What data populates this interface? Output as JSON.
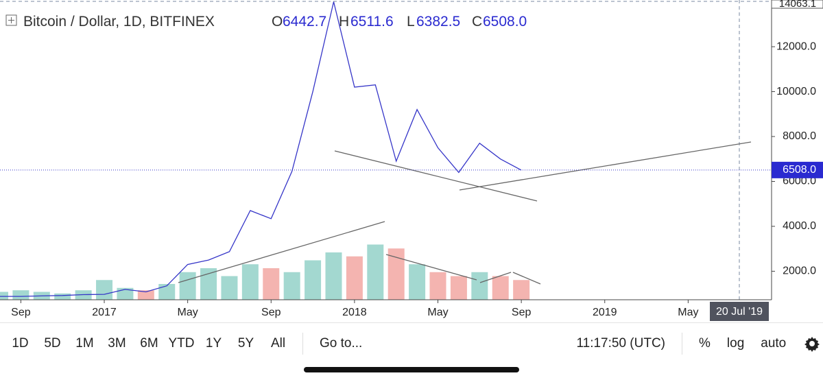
{
  "chart_data": {
    "type": "line",
    "title": "Bitcoin / Dollar, 1D, BITFINEX",
    "ohlc": {
      "o_label": "O",
      "open": 6442.7,
      "h_label": "H",
      "high": 6511.6,
      "l_label": "L",
      "low": 6382.5,
      "c_label": "C",
      "close": {
        "value": 6508,
        "label": "6508.0"
      }
    },
    "top_label": "14063.1",
    "crosshair_label": "20 Jul '19",
    "x": [
      "2016-08",
      "2016-09",
      "2016-10",
      "2016-11",
      "2016-12",
      "2017-01",
      "2017-02",
      "2017-03",
      "2017-04",
      "2017-05",
      "2017-06",
      "2017-07",
      "2017-08",
      "2017-09",
      "2017-10",
      "2017-11",
      "2017-12",
      "2018-01",
      "2018-02",
      "2018-03",
      "2018-04",
      "2018-05",
      "2018-06",
      "2018-07",
      "2018-08",
      "2018-09"
    ],
    "series": [
      {
        "color": "#3535c8",
        "values": [
          880,
          880,
          900,
          920,
          960,
          970,
          1190,
          1080,
          1350,
          2300,
          2500,
          2870,
          4700,
          4340,
          6450,
          10000,
          14000,
          10200,
          10300,
          6900,
          9200,
          7500,
          6400,
          7700,
          7000,
          6500
        ]
      }
    ],
    "volume": {
      "up_color": "#93d1c8",
      "down_color": "#f2a7a2",
      "ylim": [
        0,
        100
      ],
      "values": [
        10,
        12,
        10,
        8,
        12,
        25,
        15,
        12,
        20,
        35,
        40,
        30,
        45,
        40,
        35,
        50,
        60,
        55,
        70,
        65,
        45,
        35,
        30,
        35,
        30,
        25
      ]
    },
    "xlim": [
      "2016-08",
      "2019-09"
    ],
    "xticks": [
      {
        "value": "2016-09",
        "label": "Sep"
      },
      {
        "value": "2017-01",
        "label": "2017"
      },
      {
        "value": "2017-05",
        "label": "May"
      },
      {
        "value": "2017-09",
        "label": "Sep"
      },
      {
        "value": "2018-01",
        "label": "2018"
      },
      {
        "value": "2018-05",
        "label": "May"
      },
      {
        "value": "2018-09",
        "label": "Sep"
      },
      {
        "value": "2019-01",
        "label": "2019"
      },
      {
        "value": "2019-05",
        "label": "May"
      }
    ],
    "ylim": [
      730,
      14080
    ],
    "yticks": [
      {
        "value": 2000,
        "label": "2000.0"
      },
      {
        "value": 4000,
        "label": "4000.0"
      },
      {
        "value": 6000,
        "label": "6000.0"
      },
      {
        "value": 8000,
        "label": "8000.0"
      },
      {
        "value": 10000,
        "label": "10000.0"
      },
      {
        "value": 12000,
        "label": "12000.0"
      }
    ],
    "grid": false
  },
  "toolbar": {
    "ranges": [
      "1D",
      "5D",
      "1M",
      "3M",
      "6M",
      "YTD",
      "1Y",
      "5Y",
      "All"
    ],
    "goto": "Go to...",
    "time": "11:17:50 (UTC)",
    "options": [
      "%",
      "log",
      "auto"
    ]
  }
}
